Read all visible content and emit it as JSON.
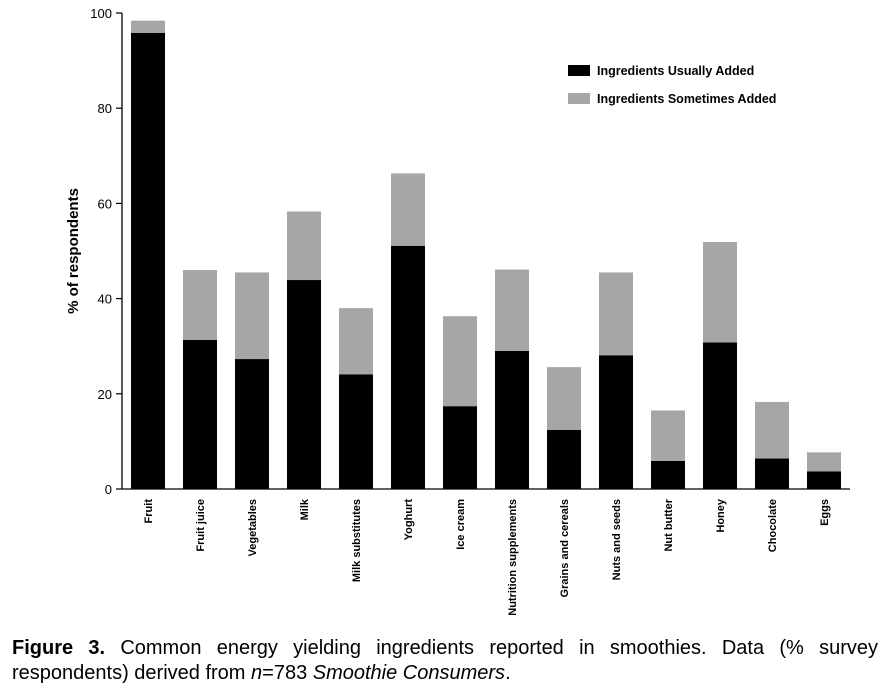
{
  "chart_data": {
    "type": "bar",
    "stacked": true,
    "categories": [
      "Fruit",
      "Fruit juice",
      "Vegetables",
      "Milk",
      "Milk substitutes",
      "Yoghurt",
      "Ice cream",
      "Nutrition supplements",
      "Grains and cereals",
      "Nuts and seeds",
      "Nut butter",
      "Honey",
      "Chocolate",
      "Eggs"
    ],
    "series": [
      {
        "name": "Ingredients Usually Added",
        "color": "#000000",
        "values": [
          95.8,
          31.3,
          27.3,
          43.9,
          24.1,
          51.1,
          17.4,
          29.0,
          12.4,
          28.1,
          5.9,
          30.8,
          6.4,
          3.7
        ]
      },
      {
        "name": "Ingredients Sometimes Added",
        "color": "#a6a5a8",
        "values": [
          2.6,
          14.7,
          18.2,
          14.4,
          13.9,
          15.2,
          18.9,
          17.1,
          13.2,
          17.4,
          10.6,
          21.1,
          11.9,
          4.0
        ]
      }
    ],
    "ylabel": "% of respondents",
    "xlabel": "",
    "ylim": [
      0,
      100
    ],
    "yticks": [
      0,
      20,
      40,
      60,
      80,
      100
    ],
    "grid": false,
    "legend": "top-right"
  },
  "caption": {
    "label": "Figure 3.",
    "text_before_n": " Common energy yielding ingredients reported in smoothies. Data (% survey respondents) derived from ",
    "n_symbol": "n",
    "text_after_n": "=783 ",
    "italic_phrase": "Smoothie Consumers",
    "end": "."
  }
}
